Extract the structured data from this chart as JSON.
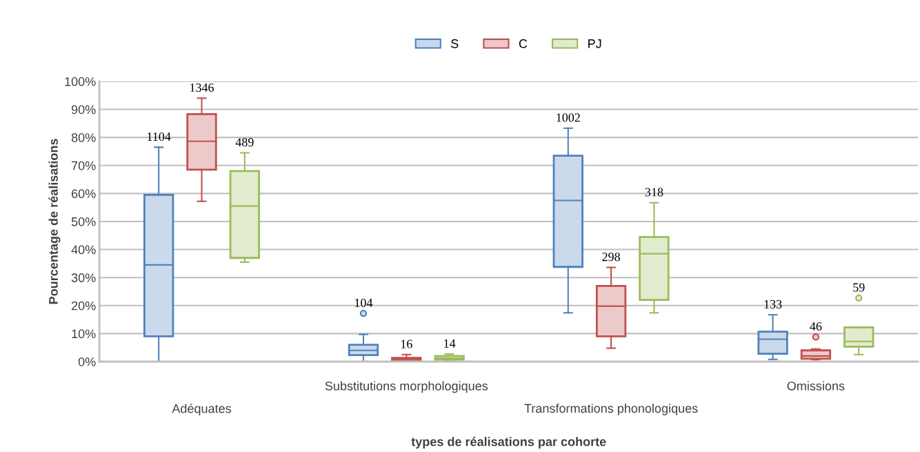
{
  "chart_data": {
    "type": "box",
    "xlabel": "types de réalisations par cohorte",
    "ylabel": "Pourcentage de réalisations",
    "categories": [
      "Adéquates",
      "Substitutions morphologiques",
      "Transformations phonologiques",
      "Omissions"
    ],
    "ylim": [
      0,
      100
    ],
    "yticks": [
      {
        "value": 0,
        "label": "0%"
      },
      {
        "value": 10,
        "label": "10%"
      },
      {
        "value": 20,
        "label": "20%"
      },
      {
        "value": 30,
        "label": "30%"
      },
      {
        "value": 40,
        "label": "40%"
      },
      {
        "value": 50,
        "label": "50%"
      },
      {
        "value": 60,
        "label": "60%"
      },
      {
        "value": 70,
        "label": "70%"
      },
      {
        "value": 80,
        "label": "80%"
      },
      {
        "value": 90,
        "label": "90%"
      },
      {
        "value": 100,
        "label": "100%"
      }
    ],
    "grid": "y",
    "legend": "top",
    "series": [
      {
        "name": "S",
        "color": "#4f81bd",
        "value_labels": [
          "1104",
          "104",
          "1002",
          "133"
        ],
        "boxes": [
          {
            "low": 0,
            "q1": 9,
            "median": 34.5,
            "q3": 59.5,
            "high": 76.5
          },
          {
            "low": 0,
            "q1": 2.3,
            "median": 4,
            "q3": 6,
            "high": 9.7,
            "outliers": [
              17.2
            ]
          },
          {
            "low": 17.4,
            "q1": 33.8,
            "median": 57.5,
            "q3": 73.5,
            "high": 83.3
          },
          {
            "low": 0.8,
            "q1": 2.8,
            "median": 8,
            "q3": 10.7,
            "high": 16.7
          }
        ]
      },
      {
        "name": "C",
        "color": "#c0504d",
        "value_labels": [
          "1346",
          "16",
          "298",
          "46"
        ],
        "boxes": [
          {
            "low": 57.2,
            "q1": 68.5,
            "median": 78.6,
            "q3": 88.3,
            "high": 94
          },
          {
            "low": 0,
            "q1": 0.3,
            "median": 0.8,
            "q3": 1.3,
            "high": 2.5
          },
          {
            "low": 4.8,
            "q1": 9,
            "median": 19.8,
            "q3": 27,
            "high": 33.6
          },
          {
            "low": 0.7,
            "q1": 1,
            "median": 2,
            "q3": 4,
            "high": 4.5,
            "outliers": [
              8.8
            ]
          }
        ]
      },
      {
        "name": "PJ",
        "color": "#9bbb59",
        "value_labels": [
          "489",
          "14",
          "318",
          "59"
        ],
        "boxes": [
          {
            "low": 35.5,
            "q1": 37,
            "median": 55.5,
            "q3": 68,
            "high": 74.5
          },
          {
            "low": 0.5,
            "q1": 0.7,
            "median": 1.2,
            "q3": 2,
            "high": 2.7
          },
          {
            "low": 17.4,
            "q1": 22,
            "median": 38.5,
            "q3": 44.5,
            "high": 56.7
          },
          {
            "low": 2.5,
            "q1": 5.3,
            "median": 7.2,
            "q3": 12.2,
            "high": 12.2,
            "outliers": [
              22.7
            ]
          }
        ]
      }
    ]
  }
}
